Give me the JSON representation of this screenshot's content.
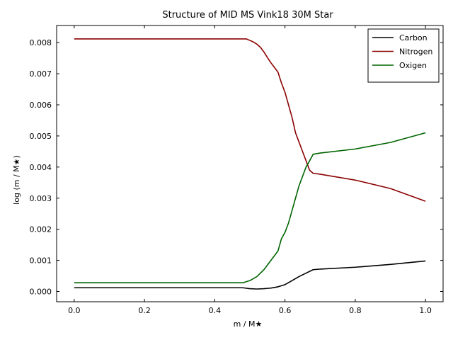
{
  "chart_data": {
    "type": "line",
    "title": "Structure of MID MS Vink18 30M Star",
    "xlabel": "m / M★",
    "ylabel": "log (m / M★)",
    "xlim": [
      -0.05,
      1.05
    ],
    "ylim": [
      -0.00033,
      0.00855
    ],
    "xticks": [
      0.0,
      0.2,
      0.4,
      0.6,
      0.8,
      1.0
    ],
    "xtick_labels": [
      "0.0",
      "0.2",
      "0.4",
      "0.6",
      "0.8",
      "1.0"
    ],
    "yticks": [
      0.0,
      0.001,
      0.002,
      0.003,
      0.004,
      0.005,
      0.006,
      0.007,
      0.008
    ],
    "ytick_labels": [
      "0.000",
      "0.001",
      "0.002",
      "0.003",
      "0.004",
      "0.005",
      "0.006",
      "0.007",
      "0.008"
    ],
    "grid": false,
    "legend_position": "top-right",
    "series": [
      {
        "name": "Carbon",
        "color": "#000000",
        "x": [
          0.0,
          0.48,
          0.5,
          0.52,
          0.54,
          0.56,
          0.58,
          0.6,
          0.62,
          0.64,
          0.66,
          0.68,
          0.7,
          0.8,
          0.9,
          1.0
        ],
        "y": [
          0.00012,
          0.00012,
          9e-05,
          8e-05,
          9e-05,
          0.00011,
          0.00015,
          0.00022,
          0.00035,
          0.00048,
          0.00059,
          0.0007,
          0.00072,
          0.00078,
          0.00087,
          0.00098
        ]
      },
      {
        "name": "Nitrogen",
        "color": "#8b0000",
        "x": [
          0.0,
          0.49,
          0.5,
          0.51,
          0.52,
          0.53,
          0.54,
          0.55,
          0.56,
          0.57,
          0.58,
          0.59,
          0.6,
          0.61,
          0.62,
          0.63,
          0.64,
          0.65,
          0.66,
          0.67,
          0.68,
          0.7,
          0.8,
          0.9,
          1.0
        ],
        "y": [
          0.00812,
          0.00812,
          0.00807,
          0.00802,
          0.00795,
          0.00785,
          0.0077,
          0.00752,
          0.00735,
          0.0072,
          0.00705,
          0.0067,
          0.0064,
          0.006,
          0.0056,
          0.0051,
          0.0048,
          0.0045,
          0.0042,
          0.0039,
          0.0038,
          0.00377,
          0.00358,
          0.00331,
          0.0029
        ]
      },
      {
        "name": "Oxigen",
        "color": "#006400",
        "x": [
          0.0,
          0.48,
          0.5,
          0.52,
          0.54,
          0.56,
          0.58,
          0.59,
          0.6,
          0.61,
          0.62,
          0.63,
          0.64,
          0.65,
          0.66,
          0.67,
          0.68,
          0.7,
          0.8,
          0.9,
          1.0
        ],
        "y": [
          0.00028,
          0.00028,
          0.00035,
          0.00048,
          0.0007,
          0.001,
          0.0013,
          0.0017,
          0.0019,
          0.0022,
          0.0026,
          0.003,
          0.0034,
          0.0037,
          0.004,
          0.0042,
          0.00441,
          0.00445,
          0.00458,
          0.00479,
          0.0051
        ]
      }
    ]
  }
}
